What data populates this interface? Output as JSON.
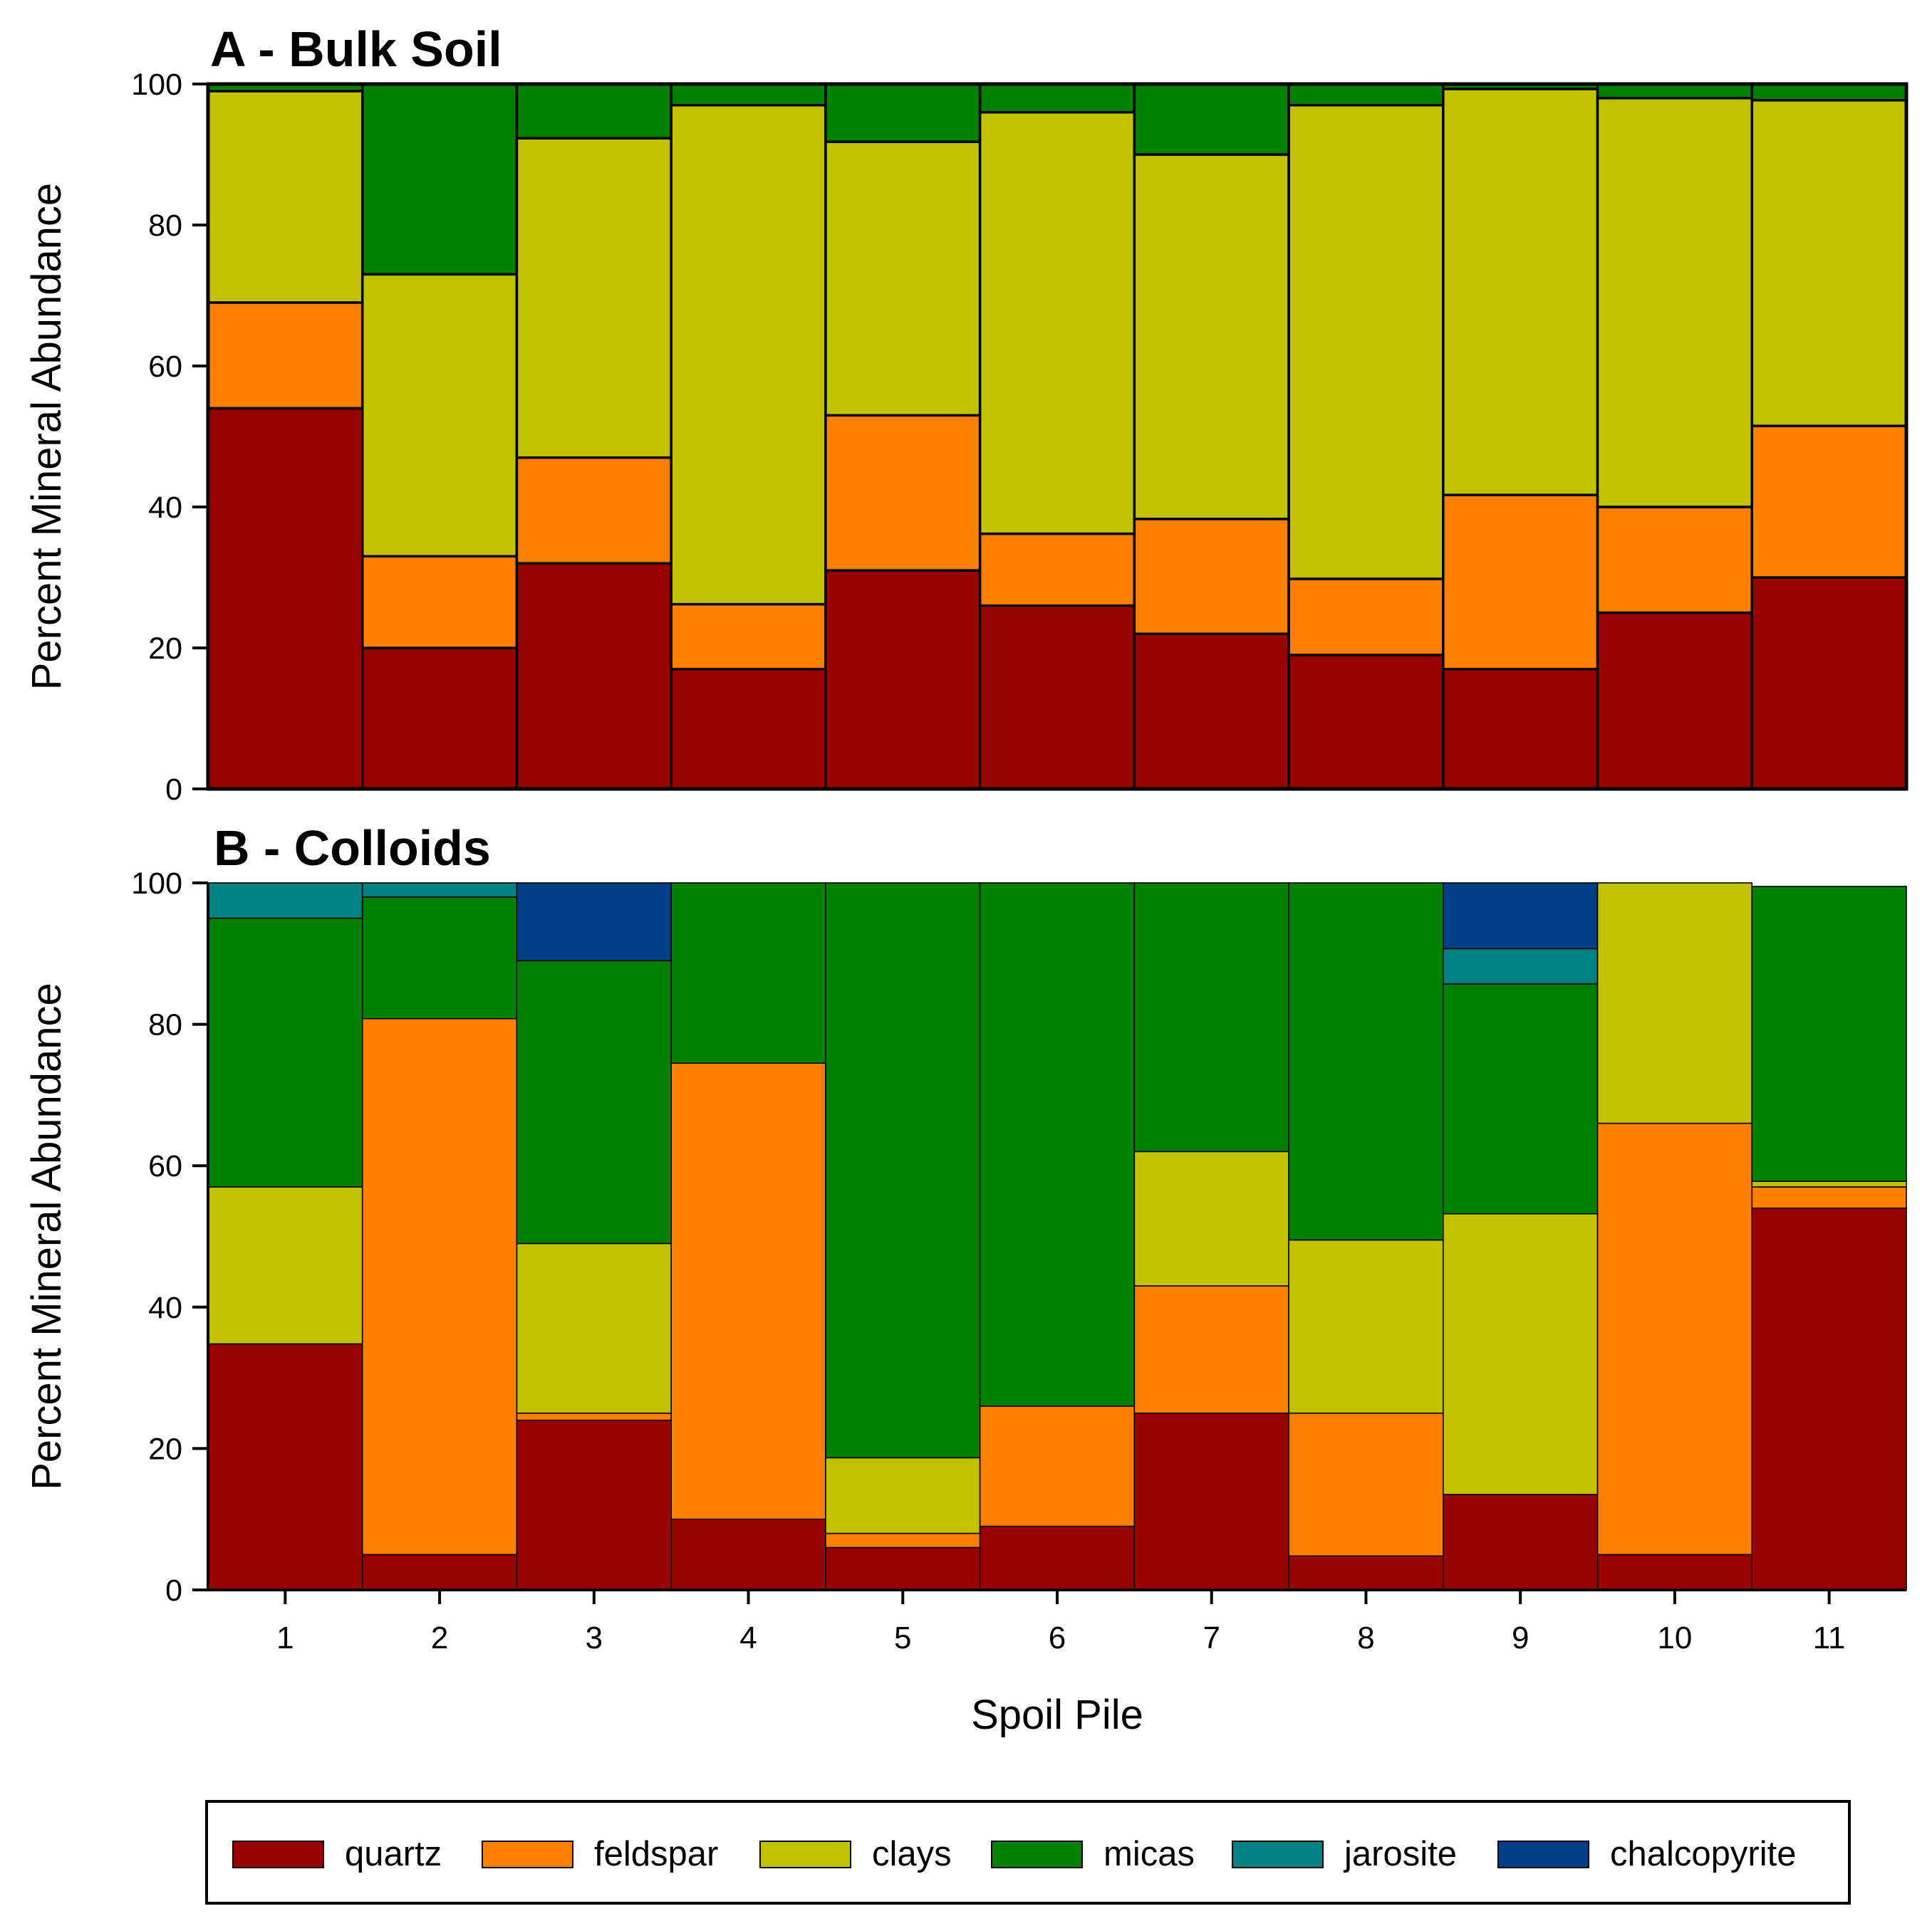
{
  "chart_data": [
    {
      "type": "stacked-bar",
      "title": "A - Bulk Soil",
      "ylabel": "Percent Mineral Abundance",
      "ylim": [
        0,
        100
      ],
      "yticks": [
        0,
        20,
        40,
        60,
        80,
        100
      ],
      "categories": [
        "1",
        "2",
        "3",
        "4",
        "5",
        "6",
        "7",
        "8",
        "9",
        "10",
        "11"
      ],
      "series": [
        {
          "name": "quartz",
          "values": [
            54,
            20,
            32,
            17,
            31,
            26,
            22,
            19,
            17,
            25,
            30
          ]
        },
        {
          "name": "feldspar",
          "values": [
            15,
            13,
            15,
            9.2,
            22,
            10.2,
            16.3,
            10.8,
            24.7,
            15,
            21.5
          ]
        },
        {
          "name": "clays",
          "values": [
            30,
            40,
            45.3,
            70.8,
            38.8,
            59.8,
            51.7,
            67.2,
            57.6,
            58,
            46.2
          ]
        },
        {
          "name": "micas",
          "values": [
            1,
            27,
            7.7,
            3,
            8.2,
            4,
            10,
            3,
            0.7,
            2,
            2.3
          ]
        },
        {
          "name": "jarosite",
          "values": [
            0,
            0,
            0,
            0,
            0,
            0,
            0,
            0,
            0,
            0,
            0
          ]
        },
        {
          "name": "chalcopyrite",
          "values": [
            0,
            0,
            0,
            0,
            0,
            0,
            0,
            0,
            0,
            0,
            0
          ]
        }
      ]
    },
    {
      "type": "stacked-bar",
      "title": "B - Colloids",
      "ylabel": "Percent Mineral Abundance",
      "xlabel": "Spoil Pile",
      "ylim": [
        0,
        100
      ],
      "yticks": [
        0,
        20,
        40,
        60,
        80,
        100
      ],
      "categories": [
        "1",
        "2",
        "3",
        "4",
        "5",
        "6",
        "7",
        "8",
        "9",
        "10",
        "11"
      ],
      "series": [
        {
          "name": "quartz",
          "values": [
            34.8,
            5,
            24,
            10,
            6,
            9,
            25,
            4.8,
            13.5,
            5,
            54
          ]
        },
        {
          "name": "feldspar",
          "values": [
            0,
            75.8,
            1,
            64.5,
            2,
            17,
            18,
            20.2,
            0,
            61,
            3
          ]
        },
        {
          "name": "clays",
          "values": [
            22.2,
            0,
            24,
            0,
            10.7,
            0,
            19,
            24.5,
            39.7,
            34,
            0.8
          ]
        },
        {
          "name": "micas",
          "values": [
            38,
            17.2,
            40,
            25.5,
            81.3,
            74,
            38,
            50.5,
            32.5,
            0,
            41.7
          ]
        },
        {
          "name": "jarosite",
          "values": [
            5,
            2,
            0,
            0,
            0,
            0,
            0,
            0,
            5,
            0,
            0
          ]
        },
        {
          "name": "chalcopyrite",
          "values": [
            0,
            0,
            11,
            0,
            0,
            0,
            0,
            0,
            9.3,
            0,
            0
          ]
        }
      ]
    }
  ],
  "legend": {
    "items": [
      {
        "name": "quartz",
        "color": "#990000"
      },
      {
        "name": "feldspar",
        "color": "#FF8000"
      },
      {
        "name": "clays",
        "color": "#C2C200"
      },
      {
        "name": "micas",
        "color": "#008000"
      },
      {
        "name": "jarosite",
        "color": "#008080"
      },
      {
        "name": "chalcopyrite",
        "color": "#003F87"
      }
    ]
  }
}
